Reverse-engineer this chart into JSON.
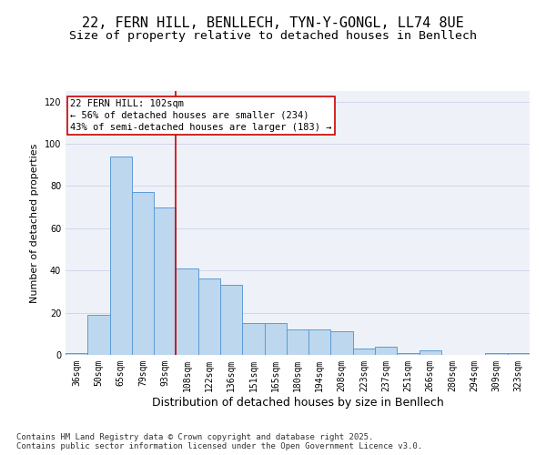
{
  "title": "22, FERN HILL, BENLLECH, TYN-Y-GONGL, LL74 8UE",
  "subtitle": "Size of property relative to detached houses in Benllech",
  "xlabel": "Distribution of detached houses by size in Benllech",
  "ylabel": "Number of detached properties",
  "categories": [
    "36sqm",
    "50sqm",
    "65sqm",
    "79sqm",
    "93sqm",
    "108sqm",
    "122sqm",
    "136sqm",
    "151sqm",
    "165sqm",
    "180sqm",
    "194sqm",
    "208sqm",
    "223sqm",
    "237sqm",
    "251sqm",
    "266sqm",
    "280sqm",
    "294sqm",
    "309sqm",
    "323sqm"
  ],
  "values": [
    1,
    19,
    94,
    77,
    70,
    41,
    36,
    33,
    15,
    15,
    12,
    12,
    11,
    3,
    4,
    1,
    2,
    0,
    0,
    1,
    1
  ],
  "bar_color": "#bdd7ee",
  "bar_edge_color": "#5b9bd5",
  "vline_x": 4.5,
  "vline_color": "#cc0000",
  "annotation_line1": "22 FERN HILL: 102sqm",
  "annotation_line2": "← 56% of detached houses are smaller (234)",
  "annotation_line3": "43% of semi-detached houses are larger (183) →",
  "annotation_box_color": "#cc0000",
  "annotation_box_bg": "#ffffff",
  "ylim": [
    0,
    125
  ],
  "yticks": [
    0,
    20,
    40,
    60,
    80,
    100,
    120
  ],
  "grid_color": "#d0d8e8",
  "background_color": "#eef2f8",
  "footer": "Contains HM Land Registry data © Crown copyright and database right 2025.\nContains public sector information licensed under the Open Government Licence v3.0.",
  "title_fontsize": 11,
  "subtitle_fontsize": 9.5,
  "xlabel_fontsize": 9,
  "ylabel_fontsize": 8,
  "tick_fontsize": 7,
  "annotation_fontsize": 7.5,
  "footer_fontsize": 6.5
}
